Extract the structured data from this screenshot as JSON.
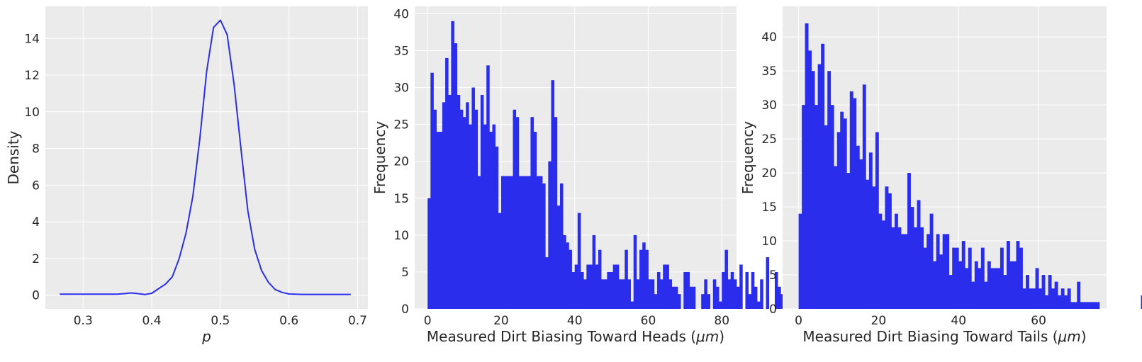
{
  "colors": {
    "background": "#ebebeb",
    "grid": "#ffffff",
    "series": "#2a2eec",
    "text": "#262626"
  },
  "chart_data": [
    {
      "type": "line",
      "xlabel": "p",
      "ylabel": "Density",
      "xlim": [
        0.245,
        0.715
      ],
      "ylim": [
        -0.75,
        15.75
      ],
      "grid": true,
      "xticks": [
        0.3,
        0.4,
        0.5,
        0.6,
        0.7
      ],
      "xtick_labels": [
        "0.3",
        "0.4",
        "0.5",
        "0.6",
        "0.7"
      ],
      "yticks": [
        0,
        2,
        4,
        6,
        8,
        10,
        12,
        14
      ],
      "ytick_labels": [
        "0",
        "2",
        "4",
        "6",
        "8",
        "10",
        "12",
        "14"
      ],
      "x": [
        0.266,
        0.3,
        0.35,
        0.36,
        0.37,
        0.38,
        0.39,
        0.4,
        0.41,
        0.42,
        0.43,
        0.44,
        0.45,
        0.46,
        0.47,
        0.48,
        0.49,
        0.5,
        0.51,
        0.52,
        0.53,
        0.54,
        0.55,
        0.56,
        0.57,
        0.58,
        0.59,
        0.6,
        0.62,
        0.65,
        0.69
      ],
      "y": [
        0.05,
        0.05,
        0.05,
        0.08,
        0.12,
        0.08,
        0.03,
        0.1,
        0.35,
        0.6,
        1.0,
        2.0,
        3.4,
        5.4,
        8.5,
        12.2,
        14.6,
        15.0,
        14.2,
        11.5,
        8.0,
        4.6,
        2.5,
        1.35,
        0.7,
        0.3,
        0.15,
        0.06,
        0.04,
        0.04,
        0.04
      ]
    },
    {
      "type": "bar",
      "xlabel": "Measured Dirt Biasing Toward Heads ",
      "ylabel": "Frequency",
      "xlim": [
        -3.5,
        84
      ],
      "ylim": [
        0,
        41
      ],
      "grid": true,
      "xticks": [
        0,
        20,
        40,
        60,
        80
      ],
      "xtick_labels": [
        "0",
        "20",
        "40",
        "60",
        "80"
      ],
      "yticks": [
        0,
        5,
        10,
        15,
        20,
        25,
        30,
        35,
        40
      ],
      "ytick_labels": [
        "0",
        "5",
        "10",
        "15",
        "20",
        "25",
        "30",
        "35",
        "40"
      ],
      "bin_start": 0,
      "bin_width": 0.8,
      "values": [
        15,
        32,
        27,
        24,
        24,
        28,
        34,
        29,
        39,
        36,
        29,
        27,
        26,
        28,
        25,
        30,
        27,
        18,
        29,
        25,
        33,
        24,
        25,
        22,
        13,
        18,
        18,
        18,
        18,
        27,
        26,
        18,
        18,
        18,
        18,
        26,
        24,
        18,
        18,
        17,
        7,
        20,
        31,
        26,
        14,
        17,
        10,
        9,
        8,
        5,
        6,
        13,
        5,
        4,
        6,
        6,
        10,
        6,
        8,
        4,
        4,
        5,
        5,
        6,
        6,
        4,
        4,
        8,
        4,
        1,
        10,
        4,
        8,
        9,
        8,
        4,
        4,
        2,
        5,
        4,
        6,
        6,
        4,
        3,
        3,
        2,
        0,
        5,
        5,
        3,
        3,
        0,
        0,
        2,
        4,
        2,
        0,
        4,
        3,
        1,
        5,
        8,
        4,
        5,
        4,
        3,
        6,
        0,
        5,
        2,
        5,
        3,
        1,
        4,
        0,
        7,
        0,
        0,
        5,
        3,
        2,
        2,
        3,
        1,
        1,
        0,
        1,
        0,
        3,
        0,
        1,
        1,
        0,
        1,
        0,
        0,
        0,
        0,
        0,
        0,
        0,
        0,
        0,
        1,
        0,
        1,
        0,
        0,
        0,
        0,
        0,
        0,
        0,
        0,
        0,
        0,
        0,
        0,
        0,
        0
      ]
    },
    {
      "type": "bar",
      "xlabel": "Measured Dirt Biasing Toward Tails ",
      "ylabel": "Frequency",
      "xlim": [
        -4,
        77
      ],
      "ylim": [
        0,
        44.5
      ],
      "grid": true,
      "xticks": [
        0,
        20,
        40,
        60
      ],
      "xtick_labels": [
        "0",
        "20",
        "40",
        "60"
      ],
      "yticks": [
        0,
        5,
        10,
        15,
        20,
        25,
        30,
        35,
        40
      ],
      "ytick_labels": [
        "0",
        "5",
        "10",
        "15",
        "20",
        "25",
        "30",
        "35",
        "40"
      ],
      "bin_start": 0,
      "bin_width": 0.8,
      "values": [
        14,
        30,
        42,
        38,
        35,
        30,
        36,
        39,
        27,
        35,
        30,
        21,
        26,
        29,
        28,
        20,
        32,
        31,
        24,
        22,
        33,
        19,
        23,
        18,
        26,
        14,
        13,
        18,
        17,
        12,
        14,
        12,
        11,
        11,
        20,
        15,
        12,
        16,
        12,
        9,
        11,
        14,
        7,
        11,
        8,
        11,
        11,
        5,
        9,
        9,
        7,
        10,
        6,
        9,
        4,
        7,
        6,
        9,
        4,
        7,
        6,
        6,
        6,
        9,
        5,
        10,
        7,
        7,
        10,
        9,
        3,
        5,
        3,
        3,
        6,
        3,
        5,
        2,
        5,
        3,
        4,
        2,
        3,
        2,
        3,
        1,
        1,
        4,
        1,
        1,
        1,
        1,
        1,
        1,
        0,
        0,
        0,
        0,
        0,
        0,
        0,
        0,
        0,
        0,
        0,
        0,
        0,
        2,
        2,
        0,
        0,
        0,
        0,
        0,
        0,
        0,
        0,
        0,
        0,
        0,
        0,
        0,
        0,
        0,
        0,
        0,
        0,
        0,
        0,
        0,
        0,
        0,
        0,
        0,
        0,
        0,
        0,
        0,
        0,
        0,
        0,
        0,
        0,
        0,
        0,
        0,
        0,
        0,
        0,
        0,
        0,
        0,
        0,
        0,
        0,
        0,
        0,
        0,
        0,
        0
      ]
    }
  ]
}
